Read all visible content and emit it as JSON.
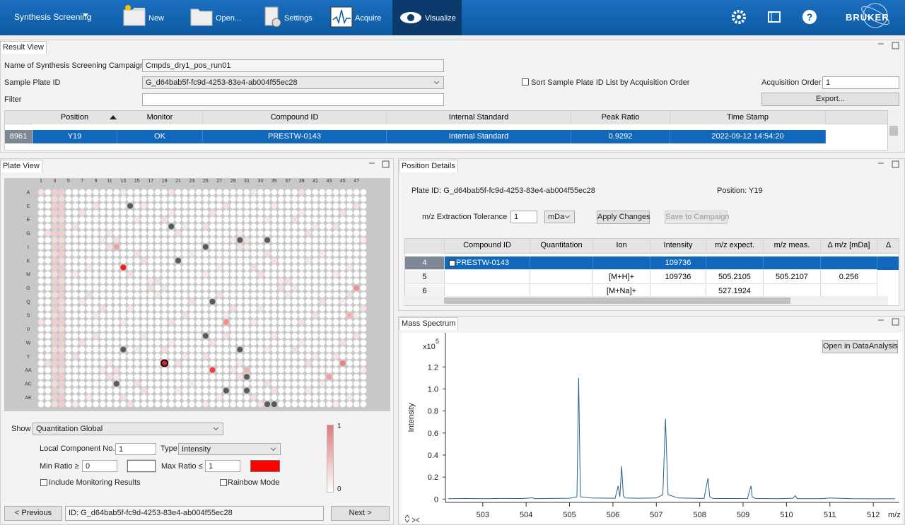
{
  "toolbar": {
    "app": "Synthesis Screening",
    "buttons": [
      "New",
      "Open...",
      "Settings",
      "Acquire",
      "Visualize"
    ],
    "logo": "BRUKER"
  },
  "result_view": {
    "tab": "Result View",
    "campaign_label": "Name of Synthesis Screening Campaign",
    "campaign": "Cmpds_dry1_pos_run01",
    "plate_label": "Sample Plate ID",
    "plate_id": "G_d64bab5f-fc9d-4253-83e4-ab004f55ec28",
    "filter_label": "Filter",
    "sort_label": "Sort Sample Plate ID List by Acquisition Order",
    "order_label": "Acquisition Order",
    "order": "1",
    "export": "Export...",
    "columns": [
      "Position",
      "Monitor",
      "Compound ID",
      "Internal Standard",
      "Peak Ratio",
      "Time Stamp"
    ],
    "row": {
      "index": "8961",
      "cells": [
        "Y19",
        "OK",
        "PRESTW-0143",
        "Internal Standard",
        "0.9292",
        "2022-09-12 14:54:20"
      ]
    }
  },
  "plate_view": {
    "tab": "Plate View",
    "columns": [
      "1",
      "3",
      "5",
      "7",
      "9",
      "11",
      "13",
      "15",
      "17",
      "19",
      "21",
      "23",
      "25",
      "27",
      "29",
      "31",
      "33",
      "35",
      "37",
      "39",
      "41",
      "43",
      "45",
      "47"
    ],
    "rows": [
      "A",
      "C",
      "E",
      "G",
      "I",
      "K",
      "M",
      "O",
      "Q",
      "S",
      "U",
      "W",
      "Y",
      "AA",
      "AC",
      "AE"
    ],
    "show_label": "Show",
    "show": "Quantitation Global",
    "component_label": "Local Component No.",
    "component": "1",
    "type_label": "Type",
    "type": "Intensity",
    "min_label": "Min Ratio ≥",
    "min": "0",
    "max_label": "Max Ratio ≤",
    "max": "1",
    "monitoring": "Include Monitoring Results",
    "rainbow": "Rainbow Mode",
    "scale_max": "1",
    "scale_min": "0",
    "previous": "< Previous",
    "id": "ID: G_d64bab5f-fc9d-4253-83e4-ab004f55ec28",
    "next": "Next >"
  },
  "position_details": {
    "tab": "Position Details",
    "plate_id": "Plate ID:  G_d64bab5f-fc9d-4253-83e4-ab004f55ec28",
    "position": "Position:  Y19",
    "tolerance_label": "m/z Extraction Tolerance",
    "tolerance": "1",
    "unit": "mDa",
    "apply": "Apply Changes",
    "save": "Save to Campaign",
    "columns": [
      "Compound ID",
      "Quantitation",
      "Ion",
      "Intensity",
      "m/z expect.",
      "m/z meas.",
      "Δ m/z [mDa]",
      "Δ"
    ],
    "rows": [
      [
        "4",
        "PRESTW-0143",
        "",
        "",
        "109736",
        "",
        "",
        ""
      ],
      [
        "5",
        "",
        "",
        "[M+H]+",
        "109736",
        "505.2105",
        "505.2107",
        "0.256"
      ],
      [
        "6",
        "",
        "",
        "[M+Na]+",
        "",
        "527.1924",
        "",
        ""
      ]
    ]
  },
  "mass_spectrum": {
    "tab": "Mass Spectrum",
    "open": "Open in DataAnalysis"
  },
  "chart_data": {
    "type": "line",
    "y_label": "Intensity",
    "x_unit": "m/z",
    "multiplier": "x10",
    "exponent": "5",
    "x": [
      502.2,
      502.6,
      503.1,
      503.4,
      503.9,
      504.15,
      504.2,
      504.5,
      505.0,
      505.17,
      505.21,
      505.25,
      505.5,
      506.05,
      506.12,
      506.16,
      506.2,
      506.24,
      506.28,
      506.6,
      507.0,
      507.15,
      507.21,
      507.27,
      507.5,
      508.1,
      508.19,
      508.23,
      508.3,
      508.6,
      509.1,
      509.18,
      509.21,
      509.28,
      509.8,
      510.15,
      510.2,
      510.25,
      510.8,
      511.0,
      511.5,
      512.0,
      512.5
    ],
    "values": [
      0.004,
      0.005,
      0.004,
      0.006,
      0.005,
      0.012,
      0.004,
      0.006,
      0.008,
      0.02,
      1.1,
      0.02,
      0.01,
      0.008,
      0.12,
      0.02,
      0.3,
      0.03,
      0.01,
      0.008,
      0.01,
      0.04,
      0.73,
      0.04,
      0.01,
      0.006,
      0.19,
      0.02,
      0.006,
      0.005,
      0.006,
      0.12,
      0.02,
      0.005,
      0.004,
      0.008,
      0.03,
      0.004,
      0.004,
      0.01,
      0.004,
      0.003,
      0.003
    ],
    "color": "#2b5f8e",
    "xlim": [
      502.14,
      512.6
    ],
    "ylim": [
      -0.03,
      1.51
    ],
    "xticks": [
      503,
      504,
      505,
      506,
      507,
      508,
      509,
      510,
      511,
      512
    ],
    "yticks": [
      0,
      0.2,
      0.4,
      0.6,
      0.8,
      {
        "value": 1,
        "label": "1.0"
      },
      1.2
    ]
  }
}
